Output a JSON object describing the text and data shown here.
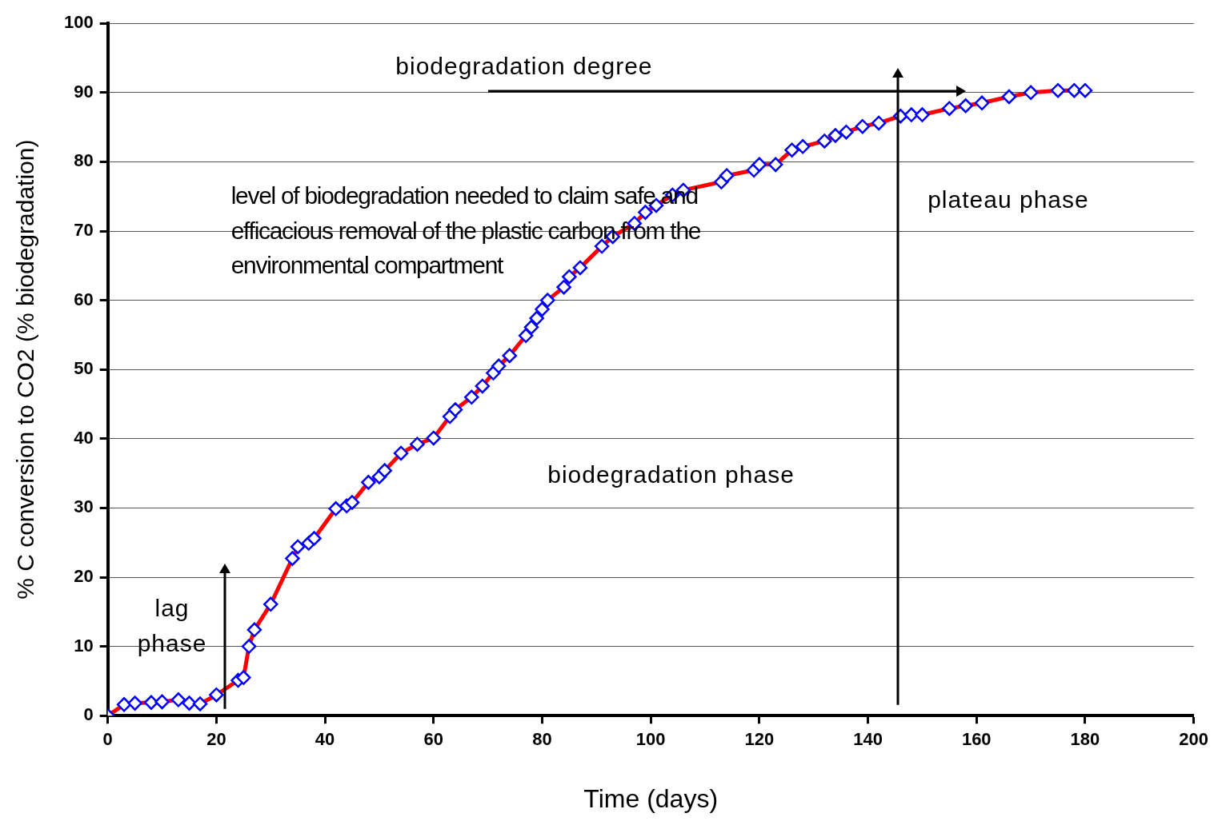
{
  "chart_data": {
    "type": "line",
    "xlabel": "Time (days)",
    "ylabel": "% C conversion to CO2 (% biodegradation)",
    "xlim": [
      0,
      200
    ],
    "xticks": [
      0,
      20,
      40,
      60,
      80,
      100,
      120,
      140,
      160,
      180,
      200
    ],
    "ylim": [
      0,
      100
    ],
    "yticks": [
      0,
      10,
      20,
      30,
      40,
      50,
      60,
      70,
      80,
      90,
      100
    ],
    "grid": "y",
    "legend": false,
    "marker": "diamond",
    "line_style": "solid",
    "annotations": [
      "biodegradation degree",
      "level of biodegradation needed to  claim safe and efficacious removal of the plastic carbon from the environmental compartment",
      "plateau phase",
      "biodegradation phase",
      "lag phase"
    ],
    "series": [
      {
        "color": "#ff0000",
        "x": [
          0,
          3,
          5,
          8,
          10,
          13,
          15,
          17,
          20,
          24,
          25,
          26,
          27,
          30,
          34,
          35,
          37,
          38,
          42,
          44,
          45,
          48,
          50,
          51,
          54,
          57,
          60,
          63,
          64,
          67,
          69,
          71,
          72,
          74,
          77,
          78,
          79,
          80,
          81,
          84,
          85,
          87,
          91,
          93,
          97,
          99,
          101,
          104,
          106,
          113,
          114,
          119,
          120,
          123,
          126,
          128,
          132,
          134,
          136,
          139,
          142,
          146,
          148,
          150,
          155,
          158,
          161,
          166,
          170,
          175,
          178,
          180
        ],
        "values": [
          0,
          1.6,
          1.8,
          1.9,
          2.0,
          2.3,
          1.8,
          1.7,
          3.0,
          5.1,
          5.5,
          10.0,
          12.4,
          16.1,
          22.7,
          24.4,
          24.9,
          25.6,
          29.9,
          30.3,
          30.8,
          33.7,
          34.5,
          35.4,
          37.9,
          39.2,
          40.1,
          43.2,
          44.2,
          46.0,
          47.6,
          49.5,
          50.5,
          52.0,
          54.9,
          56.1,
          57.4,
          58.7,
          60.0,
          61.9,
          63.4,
          64.7,
          67.8,
          69.2,
          71.1,
          72.7,
          73.7,
          75.2,
          75.9,
          77.1,
          78.0,
          78.8,
          79.6,
          79.6,
          81.7,
          82.2,
          83.0,
          83.8,
          84.3,
          85.1,
          85.6,
          86.6,
          86.8,
          86.8,
          87.7,
          88.1,
          88.5,
          89.4,
          90.0,
          90.3,
          90.3,
          90.3
        ]
      }
    ]
  }
}
